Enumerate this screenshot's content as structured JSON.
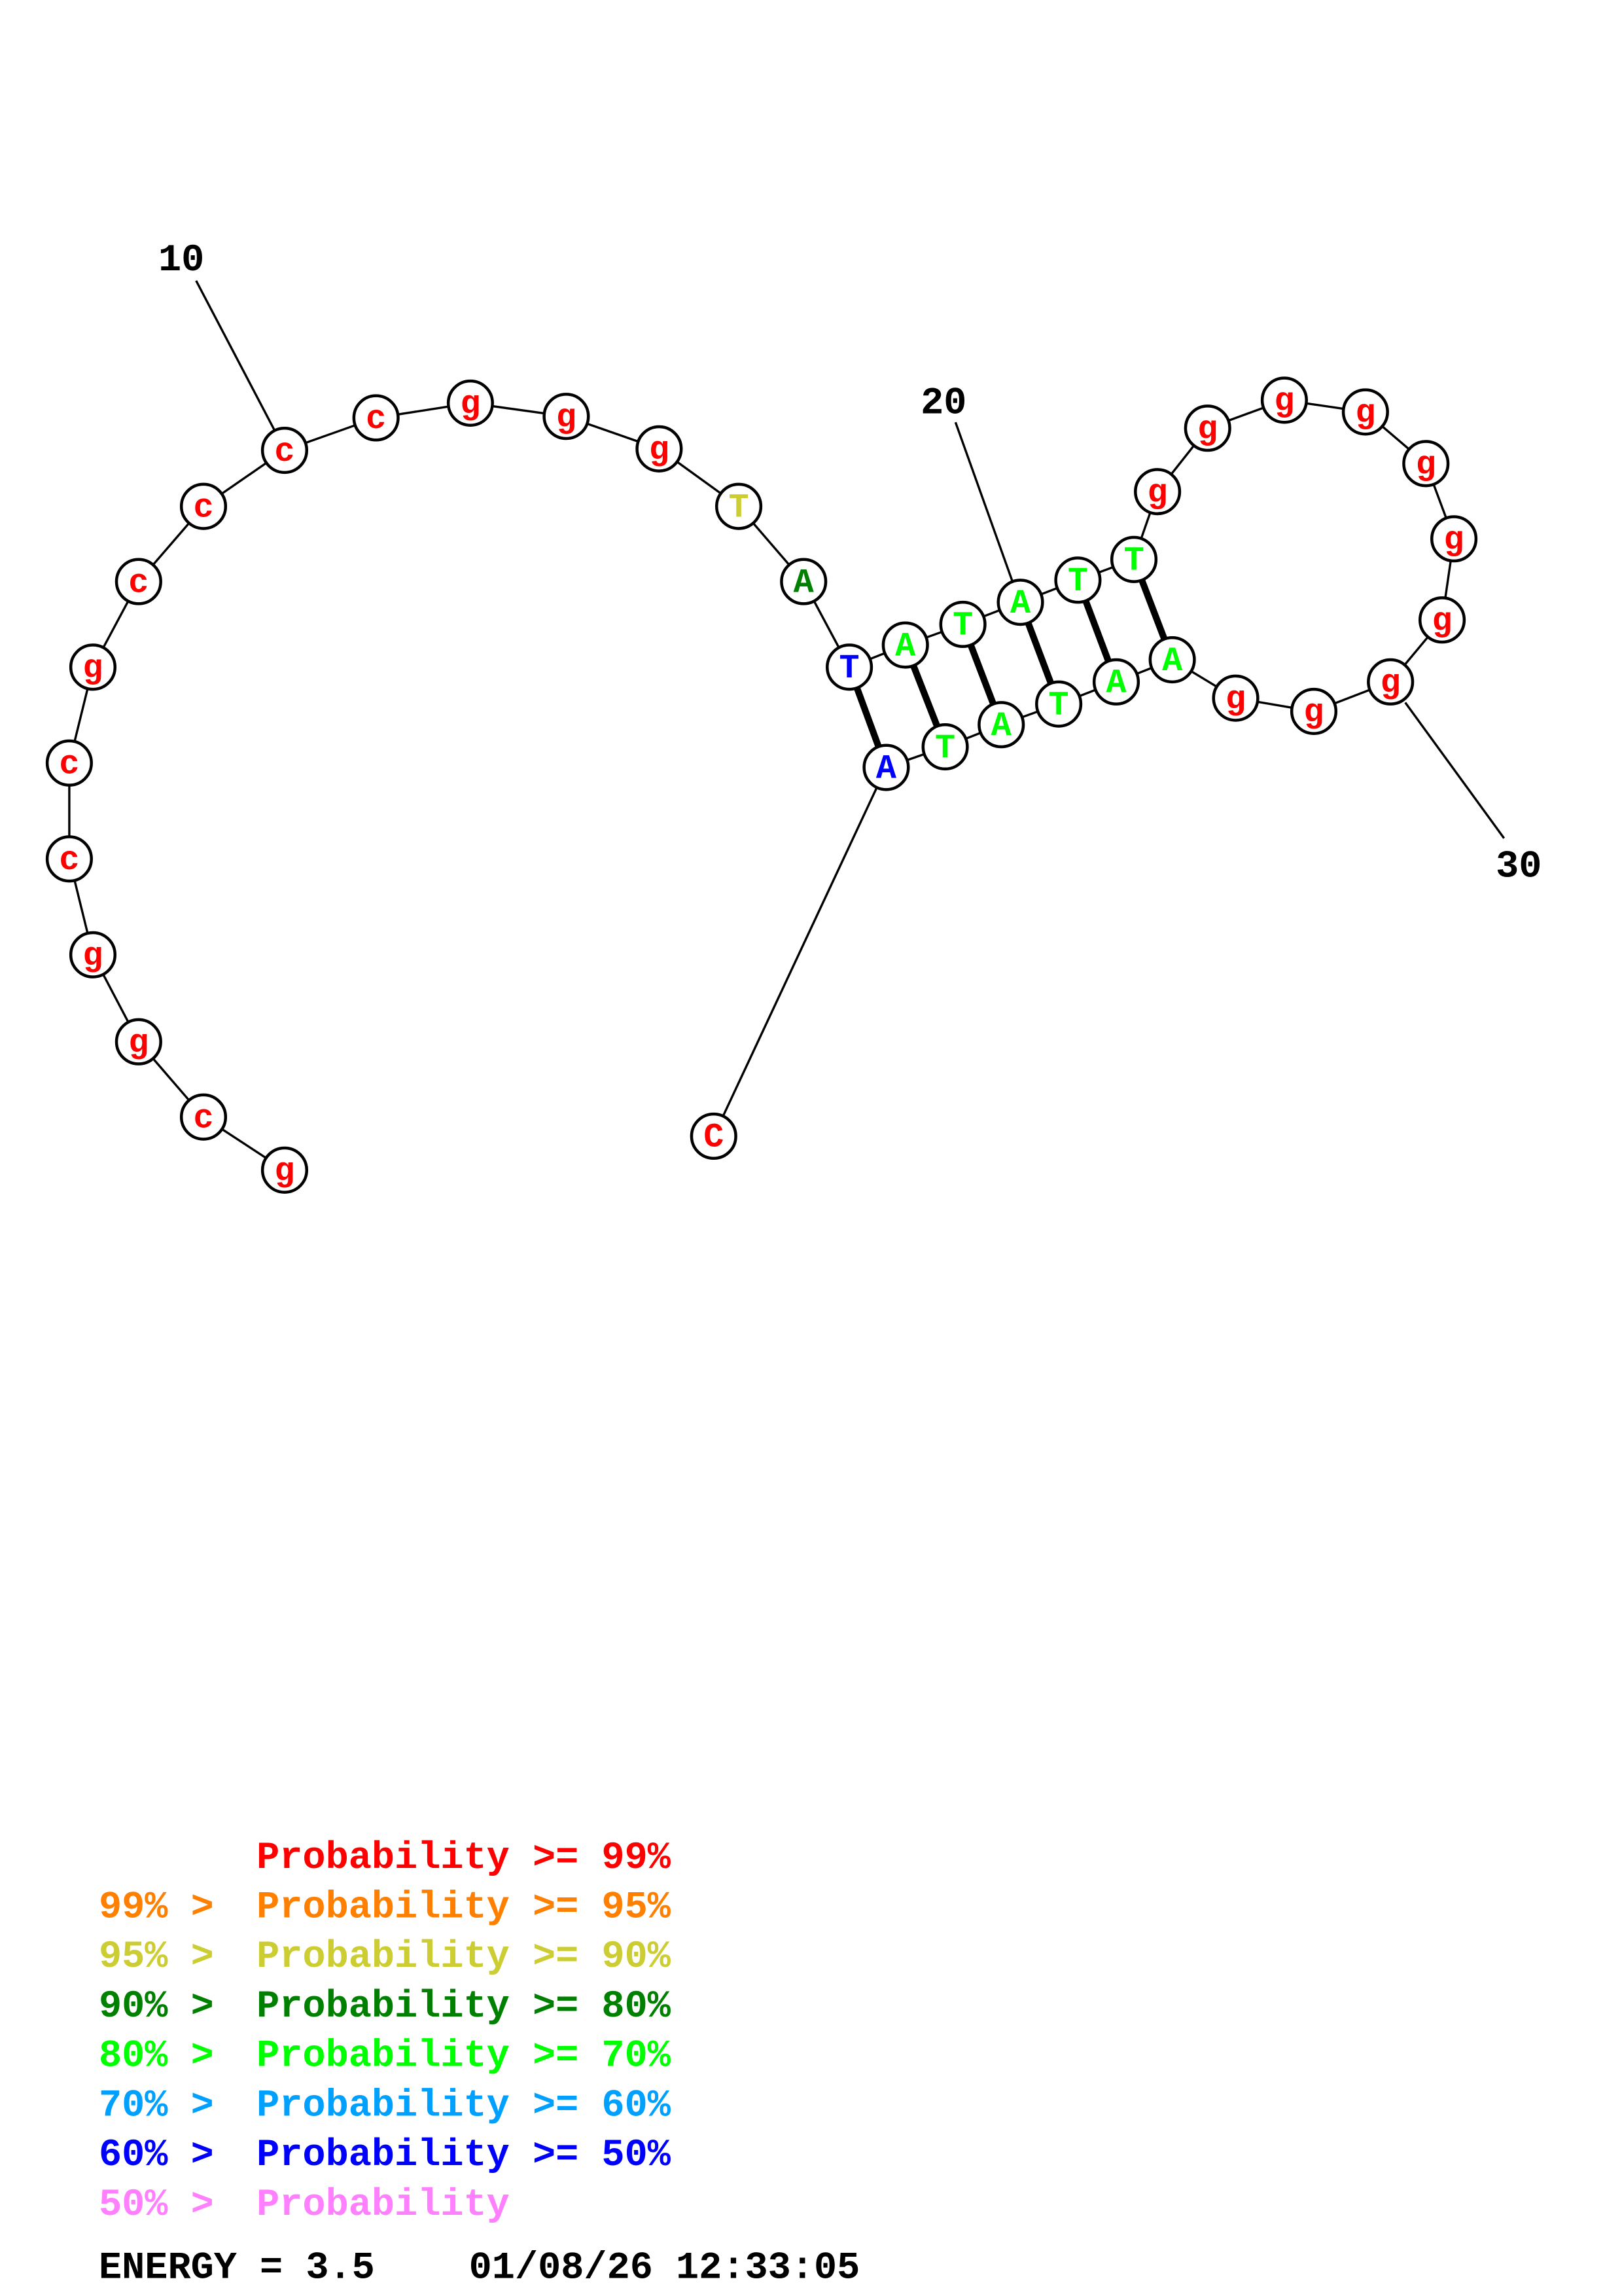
{
  "structure": {
    "sequence": [
      "g",
      "c",
      "g",
      "g",
      "c",
      "c",
      "g",
      "c",
      "c",
      "c",
      "c",
      "g",
      "g",
      "g",
      "T",
      "A",
      "T",
      "A",
      "T",
      "A",
      "T",
      "T",
      "g",
      "g",
      "g",
      "g",
      "g",
      "g",
      "g",
      "g",
      "g",
      "g",
      "A",
      "A",
      "T",
      "A",
      "T",
      "A",
      "C"
    ],
    "probability_bucket": [
      0,
      0,
      0,
      0,
      0,
      0,
      0,
      0,
      0,
      0,
      0,
      0,
      0,
      0,
      2,
      3,
      6,
      4,
      4,
      4,
      4,
      4,
      0,
      0,
      0,
      0,
      0,
      0,
      0,
      0,
      0,
      0,
      4,
      4,
      4,
      4,
      4,
      6,
      0
    ],
    "base_pairs": [
      [
        17,
        38
      ],
      [
        18,
        37
      ],
      [
        19,
        36
      ],
      [
        20,
        35
      ],
      [
        21,
        34
      ],
      [
        22,
        33
      ]
    ],
    "position_labels": [
      "10",
      "20",
      "30"
    ]
  },
  "legend": {
    "colors": [
      "#ff0000",
      "#ff8000",
      "#cccc33",
      "#008000",
      "#00ff00",
      "#00a0ff",
      "#0000ff",
      "#ff80ff"
    ],
    "rows": [
      {
        "prefix": "    ",
        "text": "Probability >= 99%"
      },
      {
        "prefix": "99% > ",
        "text": "Probability >= 95%"
      },
      {
        "prefix": "95% > ",
        "text": "Probability >= 90%"
      },
      {
        "prefix": "90% > ",
        "text": "Probability >= 80%"
      },
      {
        "prefix": "80% > ",
        "text": "Probability >= 70%"
      },
      {
        "prefix": "70% > ",
        "text": "Probability >= 60%"
      },
      {
        "prefix": "60% > ",
        "text": "Probability >= 50%"
      },
      {
        "prefix": "50% > ",
        "text": "Probability"
      }
    ]
  },
  "footer": {
    "energy": "ENERGY = 3.5",
    "timestamp": "01/08/26 12:33:05"
  }
}
